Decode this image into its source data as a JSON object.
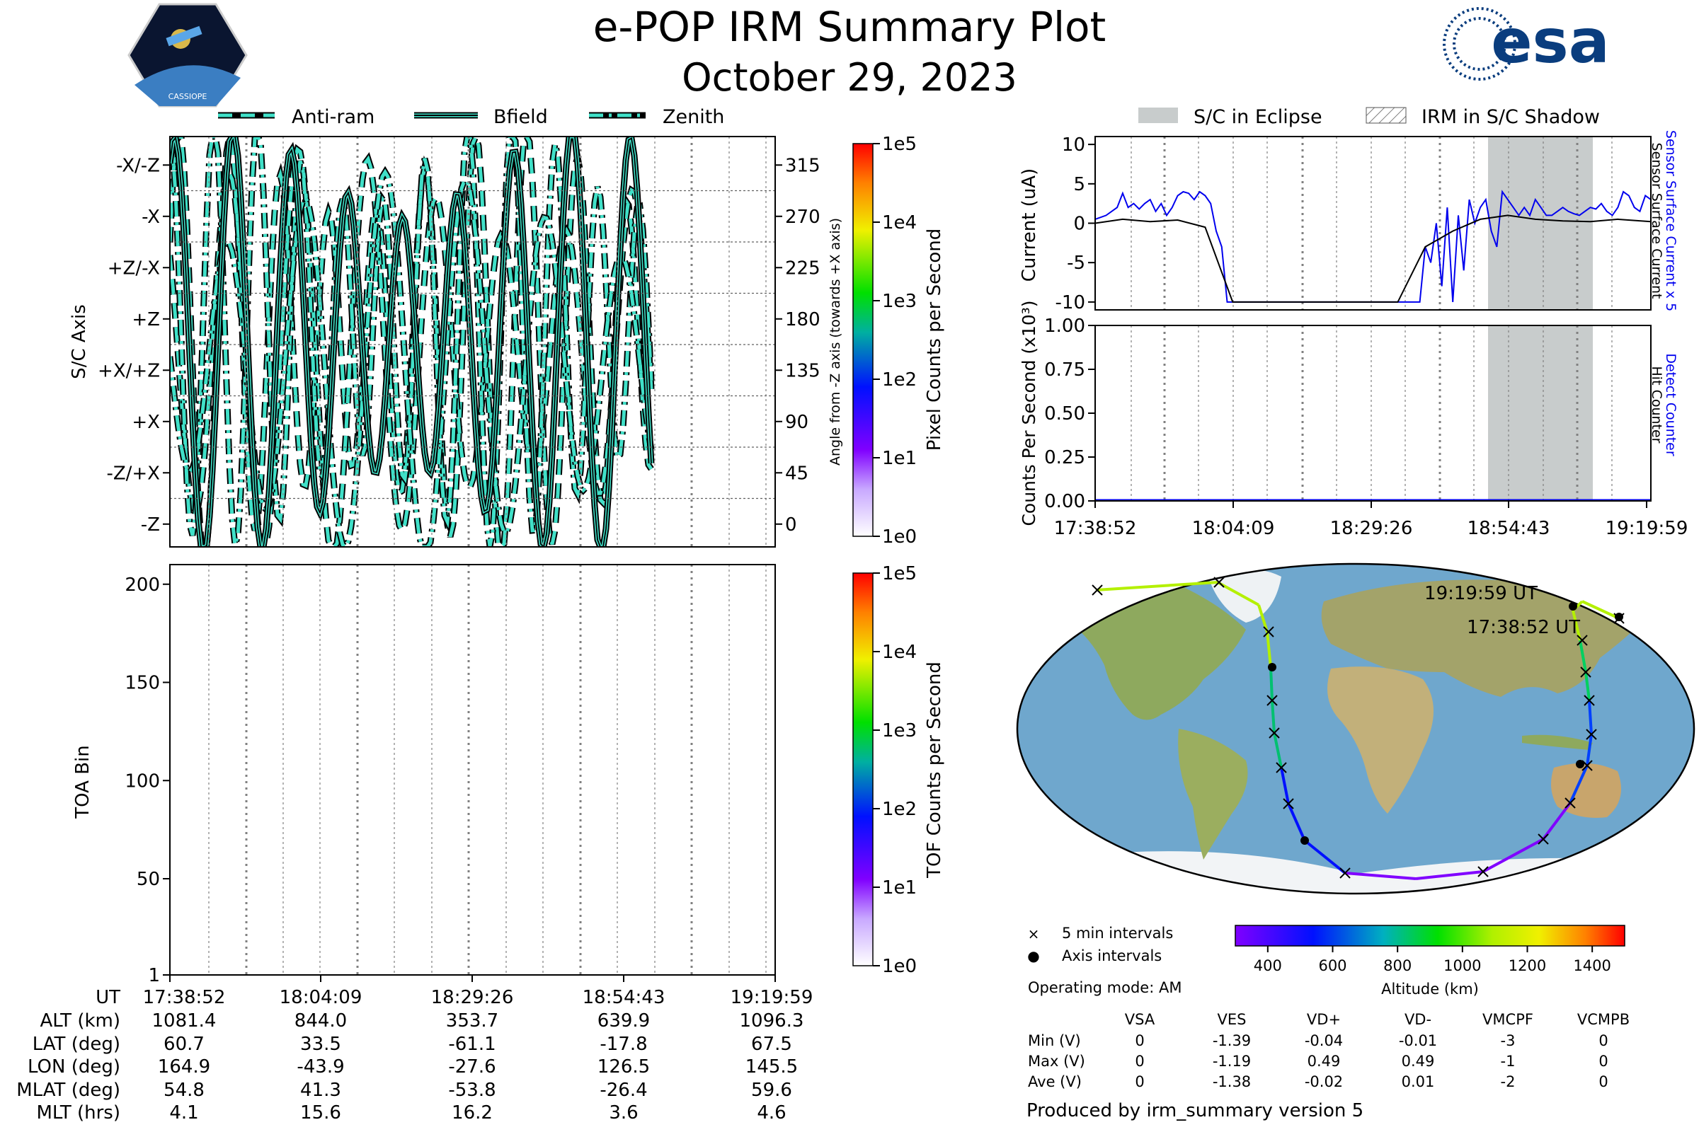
{
  "title": "e-POP IRM Summary Plot",
  "subtitle": "October 29, 2023",
  "logos": {
    "left_label": "CASSIOPE",
    "right_label": "esa"
  },
  "colors": {
    "teal": "#40e0c8",
    "eclipse": "#c8cccc",
    "sensor_blue": "#0000ee",
    "grid": "#808080",
    "ocean": "#6fa7cd",
    "land": "#b9a97a",
    "ice": "#f2f4f6"
  },
  "legend_top_left": [
    {
      "label": "Anti-ram",
      "style": "dashed"
    },
    {
      "label": "Bfield",
      "style": "solid"
    },
    {
      "label": "Zenith",
      "style": "dashdot"
    }
  ],
  "legend_top_right": [
    {
      "label": "S/C in Eclipse",
      "style": "filled"
    },
    {
      "label": "IRM in S/C Shadow",
      "style": "hatched"
    }
  ],
  "chart_data": [
    {
      "id": "sc_axis",
      "type": "line",
      "ylabel": "S/C Axis",
      "ylabel_right": "Angle from -Z axis (towards +X axis)",
      "y_categories": [
        "-Z/+X",
        "+X",
        "+X/+Z",
        "+Z",
        "+Z/-X",
        "-X",
        "-X/-Z"
      ],
      "y_category_extra": "-Z",
      "y_right_ticks": [
        "0",
        "45",
        "90",
        "135",
        "180",
        "225",
        "270",
        "315"
      ],
      "ylim": [
        -20,
        340
      ],
      "x_ticks": [
        "17:38:52",
        "18:04:09",
        "18:29:26",
        "18:54:43",
        "19:19:59"
      ],
      "series_names": [
        "Anti-ram",
        "Bfield",
        "Zenith"
      ]
    },
    {
      "id": "toa",
      "type": "heatmap",
      "ylabel": "TOA Bin",
      "y_ticks": [
        1,
        50,
        100,
        150,
        200
      ],
      "ylim": [
        1,
        210
      ],
      "x_ticks": [
        "17:38:52",
        "18:04:09",
        "18:29:26",
        "18:54:43",
        "19:19:59"
      ]
    },
    {
      "id": "pixel_colorbar",
      "type": "heatmap",
      "label": "Pixel Counts per Second",
      "ticks": [
        "1e0",
        "1e1",
        "1e2",
        "1e3",
        "1e4",
        "1e5"
      ]
    },
    {
      "id": "tof_colorbar",
      "type": "heatmap",
      "label": "TOF Counts per Second",
      "ticks": [
        "1e0",
        "1e1",
        "1e2",
        "1e3",
        "1e4",
        "1e5"
      ]
    },
    {
      "id": "current",
      "type": "line",
      "ylabel": "Current (uA)",
      "ylabel_right_1": "Sensor Surface Current x 5",
      "ylabel_right_2": "Sensor Surface Current",
      "y_ticks": [
        10,
        5,
        0,
        -5,
        -10
      ],
      "ylim": [
        -11,
        11
      ],
      "eclipse_span": [
        "18:50",
        "19:09"
      ],
      "series": [
        {
          "name": "Sensor Surface Current x 5",
          "color": "#0000ee",
          "x": [
            0,
            2,
            4,
            5,
            6,
            7,
            8,
            9,
            10,
            11,
            12,
            13,
            14,
            15,
            16,
            17,
            18,
            19,
            20,
            21,
            22,
            23,
            24,
            25,
            26,
            27,
            28,
            29,
            30,
            31,
            32,
            33,
            34,
            35,
            36,
            37,
            38,
            39,
            40,
            41,
            42,
            43,
            44,
            45,
            46,
            47,
            48,
            49,
            50,
            51,
            52,
            53,
            54,
            55,
            56,
            57,
            58,
            59,
            60,
            61,
            62,
            63,
            64,
            65,
            66,
            67,
            68,
            69,
            70,
            71,
            72,
            73,
            74,
            75,
            76,
            77,
            78,
            79,
            80,
            81,
            82,
            83,
            84,
            85,
            86,
            87,
            88,
            89,
            90,
            91,
            92,
            93,
            94,
            95,
            96,
            97,
            98,
            99,
            100,
            101
          ],
          "y": [
            0.5,
            1.0,
            2.0,
            3.8,
            2.0,
            2.5,
            1.8,
            2.5,
            3.0,
            1.5,
            2.5,
            1.0,
            2.0,
            3.5,
            4.0,
            3.8,
            3.0,
            4.0,
            3.5,
            2.5,
            -1,
            -3,
            -10,
            -10,
            -10,
            -10,
            -10,
            -10,
            -10,
            -10,
            -10,
            -10,
            -10,
            -10,
            -10,
            -10,
            -10,
            -10,
            -10,
            -10,
            -10,
            -10,
            -10,
            -10,
            -10,
            -10,
            -10,
            -10,
            -10,
            -10,
            -10,
            -10,
            -10,
            -10,
            -10,
            -10,
            -10,
            -10,
            -3,
            -5,
            0,
            -8,
            2,
            -10,
            1,
            -6,
            3,
            0,
            2,
            3,
            -1,
            -3,
            4,
            3,
            2,
            1,
            2,
            1,
            3,
            2,
            1,
            1,
            1.5,
            2,
            1.5,
            1.2,
            1,
            1.5,
            2,
            1.8,
            2.5,
            1.5,
            1,
            2,
            4,
            3.5,
            2,
            1.5,
            3.5,
            3.0
          ]
        },
        {
          "name": "Sensor Surface Current",
          "color": "#000000",
          "x": [
            0,
            5,
            10,
            15,
            20,
            25,
            30,
            35,
            40,
            45,
            50,
            55,
            60,
            65,
            70,
            75,
            80,
            85,
            90,
            95,
            101
          ],
          "y": [
            0,
            0.5,
            0.2,
            0.4,
            -0.5,
            -10,
            -10,
            -10,
            -10,
            -10,
            -10,
            -10,
            -3,
            -1,
            0.5,
            1,
            0.5,
            0.3,
            0.2,
            0.5,
            0.2
          ]
        }
      ]
    },
    {
      "id": "counts",
      "type": "line",
      "ylabel": "Counts Per Second (x10³)",
      "ylabel_right_1": "Detect Counter",
      "ylabel_right_2": "Hit Counter",
      "y_ticks": [
        "1.00",
        "0.75",
        "0.50",
        "0.25",
        "0.00"
      ],
      "ylim": [
        0,
        1
      ],
      "x_ticks": [
        "17:38:52",
        "18:04:09",
        "18:29:26",
        "18:54:43",
        "19:19:59"
      ],
      "series": [
        {
          "name": "Detect Counter",
          "color": "#0000ee",
          "x": [
            0,
            101
          ],
          "y": [
            0,
            0
          ]
        }
      ]
    },
    {
      "id": "altitude_colorbar",
      "type": "heatmap",
      "label": "Altitude (km)",
      "ticks": [
        400,
        600,
        800,
        1000,
        1200,
        1400
      ],
      "range": [
        300,
        1500
      ]
    }
  ],
  "map": {
    "end_label": "19:19:59 UT",
    "start_label": "17:38:52 UT",
    "legend": [
      {
        "symbol": "×",
        "label": "5 min intervals"
      },
      {
        "symbol": "●",
        "label": "Axis intervals"
      }
    ],
    "operating_mode": "Operating mode: AM"
  },
  "ephemeris": {
    "row_labels": [
      "UT",
      "ALT (km)",
      "LAT (deg)",
      "LON (deg)",
      "MLAT (deg)",
      "MLT (hrs)"
    ],
    "columns": [
      [
        "17:38:52",
        "1081.4",
        "60.7",
        "164.9",
        "54.8",
        "4.1"
      ],
      [
        "18:04:09",
        "844.0",
        "33.5",
        "-43.9",
        "41.3",
        "15.6"
      ],
      [
        "18:29:26",
        "353.7",
        "-61.1",
        "-27.6",
        "-53.8",
        "16.2"
      ],
      [
        "18:54:43",
        "639.9",
        "-17.8",
        "126.5",
        "-26.4",
        "3.6"
      ],
      [
        "19:19:59",
        "1096.3",
        "67.5",
        "145.5",
        "59.6",
        "4.6"
      ]
    ]
  },
  "voltage_table": {
    "headers": [
      "",
      "VSA",
      "VES",
      "VD+",
      "VD-",
      "VMCPF",
      "VCMPB"
    ],
    "rows": [
      [
        "Min (V)",
        "0",
        "-1.39",
        "-0.04",
        "-0.01",
        "-3",
        "0"
      ],
      [
        "Max (V)",
        "0",
        "-1.19",
        "0.49",
        "0.49",
        "-1",
        "0"
      ],
      [
        "Ave (V)",
        "0",
        "-1.38",
        "-0.02",
        "0.01",
        "-2",
        "0"
      ]
    ]
  },
  "footer": "Produced by irm_summary version 5"
}
